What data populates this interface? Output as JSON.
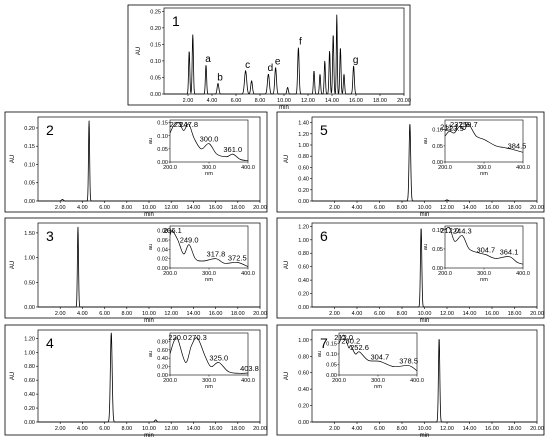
{
  "chart_data": [
    {
      "id": "1",
      "type": "line",
      "panel_label": "1",
      "ylabel": "AU",
      "xlabel": "min",
      "xlim": [
        0,
        20
      ],
      "ylim": [
        0,
        0.26
      ],
      "x_ticks": [
        "2.00",
        "4.00",
        "6.00",
        "8.00",
        "10.00",
        "12.00",
        "14.00",
        "16.00",
        "18.00",
        "20.00"
      ],
      "y_ticks": [
        "0.00",
        "0.05",
        "0.10",
        "0.15",
        "0.20",
        "0.25"
      ],
      "y_tick_values": [
        0,
        0.05,
        0.1,
        0.15,
        0.2,
        0.25
      ],
      "peaks": [
        {
          "rt": 2.1,
          "h": 0.13,
          "w": 0.05
        },
        {
          "rt": 2.4,
          "h": 0.18,
          "w": 0.05
        },
        {
          "rt": 3.5,
          "h": 0.088,
          "w": 0.05,
          "label": "a"
        },
        {
          "rt": 4.5,
          "h": 0.032,
          "w": 0.07,
          "label": "b"
        },
        {
          "rt": 6.8,
          "h": 0.07,
          "w": 0.09,
          "label": "c"
        },
        {
          "rt": 7.3,
          "h": 0.04,
          "w": 0.07
        },
        {
          "rt": 8.7,
          "h": 0.06,
          "w": 0.08,
          "label": "d"
        },
        {
          "rt": 9.3,
          "h": 0.08,
          "w": 0.07,
          "label": "e"
        },
        {
          "rt": 10.3,
          "h": 0.02,
          "w": 0.06
        },
        {
          "rt": 11.2,
          "h": 0.14,
          "w": 0.06,
          "label": "f"
        },
        {
          "rt": 12.5,
          "h": 0.07,
          "w": 0.05
        },
        {
          "rt": 13.0,
          "h": 0.06,
          "w": 0.05
        },
        {
          "rt": 13.4,
          "h": 0.1,
          "w": 0.05
        },
        {
          "rt": 13.8,
          "h": 0.13,
          "w": 0.05
        },
        {
          "rt": 14.1,
          "h": 0.18,
          "w": 0.05
        },
        {
          "rt": 14.4,
          "h": 0.24,
          "w": 0.04
        },
        {
          "rt": 14.7,
          "h": 0.14,
          "w": 0.05
        },
        {
          "rt": 15.0,
          "h": 0.06,
          "w": 0.05
        },
        {
          "rt": 15.8,
          "h": 0.085,
          "w": 0.06,
          "label": "g"
        }
      ]
    },
    {
      "id": "2",
      "type": "line",
      "panel_label": "2",
      "ylabel": "AU",
      "xlabel": "min",
      "xlim": [
        0,
        20
      ],
      "ylim": [
        0,
        0.23
      ],
      "x_ticks": [
        "2.00",
        "4.00",
        "6.00",
        "8.00",
        "10.00",
        "12.00",
        "14.00",
        "16.00",
        "18.00",
        "20.00"
      ],
      "y_ticks": [
        "0.00",
        "0.05",
        "0.10",
        "0.15",
        "0.20"
      ],
      "y_tick_values": [
        0,
        0.05,
        0.1,
        0.15,
        0.2
      ],
      "peaks": [
        {
          "rt": 4.6,
          "h": 0.22,
          "w": 0.05
        },
        {
          "rt": 2.2,
          "h": 0.004,
          "w": 0.1
        }
      ],
      "inset": {
        "ylabel": "au",
        "xlabel": "nm",
        "xlim": [
          200,
          400
        ],
        "ylim": [
          0,
          0.16
        ],
        "x_ticks": [
          "200.0",
          "300.0",
          "400.0"
        ],
        "y_ticks": [
          "0.00",
          "0.05",
          "0.10",
          "0.15"
        ],
        "y_tick_values": [
          0,
          0.05,
          0.1,
          0.15
        ],
        "wavelength": [
          200,
          210,
          223,
          235,
          247.8,
          262,
          280,
          300,
          320,
          345,
          361,
          380,
          400
        ],
        "absorbance": [
          0.11,
          0.14,
          0.15,
          0.12,
          0.145,
          0.09,
          0.05,
          0.07,
          0.03,
          0.02,
          0.03,
          0.01,
          0.005
        ],
        "peak_labels": [
          "223.1",
          "247.8",
          "300.0",
          "361.0"
        ],
        "peak_label_wl": [
          223,
          247.8,
          300,
          361
        ]
      }
    },
    {
      "id": "5",
      "type": "line",
      "panel_label": "5",
      "ylabel": "AU",
      "xlabel": "min",
      "xlim": [
        0,
        20
      ],
      "ylim": [
        0,
        1.5
      ],
      "x_ticks": [
        "2.00",
        "4.00",
        "6.00",
        "8.00",
        "10.00",
        "12.00",
        "14.00",
        "16.00",
        "18.00",
        "20.00"
      ],
      "y_ticks": [
        "0.00",
        "0.20",
        "0.40",
        "0.60",
        "0.80",
        "1.00",
        "1.20",
        "1.40"
      ],
      "y_tick_values": [
        0,
        0.2,
        0.4,
        0.6,
        0.8,
        1.0,
        1.2,
        1.4
      ],
      "peaks": [
        {
          "rt": 8.7,
          "h": 1.38,
          "w": 0.07
        },
        {
          "rt": 12.0,
          "h": 0.02,
          "w": 0.1
        }
      ],
      "inset": {
        "ylabel": "au",
        "xlabel": "nm",
        "xlim": [
          200,
          400
        ],
        "ylim": [
          0,
          0.13
        ],
        "x_ticks": [
          "200.0",
          "300.0",
          "400.0"
        ],
        "y_ticks": [
          "0.00",
          "0.05",
          "0.10"
        ],
        "y_tick_values": [
          0,
          0.05,
          0.1
        ],
        "wavelength": [
          200,
          211,
          224,
          237,
          250,
          260,
          280,
          300,
          330,
          350,
          370,
          385,
          400
        ],
        "absorbance": [
          0.08,
          0.095,
          0.09,
          0.11,
          0.1,
          0.118,
          0.08,
          0.07,
          0.05,
          0.045,
          0.04,
          0.035,
          0.03
        ],
        "peak_labels": [
          "211.1",
          "223.9",
          "237.0",
          "259.7",
          "384.5"
        ],
        "peak_label_wl": [
          211,
          224,
          237,
          259.7,
          384.5
        ]
      }
    },
    {
      "id": "3",
      "type": "line",
      "panel_label": "3",
      "ylabel": "AU",
      "xlabel": "min",
      "xlim": [
        0,
        20
      ],
      "ylim": [
        0,
        1.7
      ],
      "x_ticks": [
        "2.00",
        "4.00",
        "6.00",
        "8.00",
        "10.00",
        "12.00",
        "14.00",
        "16.00",
        "18.00",
        "20.00"
      ],
      "y_ticks": [
        "0.00",
        "0.50",
        "1.00",
        "1.50"
      ],
      "y_tick_values": [
        0,
        0.5,
        1.0,
        1.5
      ],
      "peaks": [
        {
          "rt": 3.6,
          "h": 1.62,
          "w": 0.05
        }
      ],
      "inset": {
        "ylabel": "au",
        "xlabel": "nm",
        "xlim": [
          200,
          400
        ],
        "ylim": [
          0,
          0.09
        ],
        "x_ticks": [
          "200.0",
          "300.0",
          "400.0"
        ],
        "y_ticks": [
          "0.00",
          "0.02",
          "0.04",
          "0.06",
          "0.08"
        ],
        "y_tick_values": [
          0,
          0.02,
          0.04,
          0.06,
          0.08
        ],
        "wavelength": [
          200,
          206.1,
          220,
          235,
          249,
          265,
          285,
          317.8,
          340,
          372.5,
          400
        ],
        "absorbance": [
          0.07,
          0.08,
          0.06,
          0.03,
          0.05,
          0.02,
          0.015,
          0.02,
          0.01,
          0.012,
          0.003
        ],
        "peak_labels": [
          "206.1",
          "249.0",
          "317.8",
          "372.5"
        ],
        "peak_label_wl": [
          206.1,
          249,
          317.8,
          372.5
        ]
      }
    },
    {
      "id": "6",
      "type": "line",
      "panel_label": "6",
      "ylabel": "AU",
      "xlabel": "min",
      "xlim": [
        0,
        20
      ],
      "ylim": [
        0,
        1.25
      ],
      "x_ticks": [
        "2.00",
        "4.00",
        "6.00",
        "8.00",
        "10.00",
        "12.00",
        "14.00",
        "16.00",
        "18.00",
        "20.00"
      ],
      "y_ticks": [
        "0.00",
        "0.20",
        "0.40",
        "0.60",
        "0.80",
        "1.00",
        "1.20"
      ],
      "y_tick_values": [
        0,
        0.2,
        0.4,
        0.6,
        0.8,
        1.0,
        1.2
      ],
      "peaks": [
        {
          "rt": 9.7,
          "h": 1.18,
          "w": 0.06
        }
      ],
      "inset": {
        "ylabel": "au",
        "xlabel": "nm",
        "xlim": [
          200,
          400
        ],
        "ylim": [
          0,
          0.11
        ],
        "x_ticks": [
          "200.0",
          "300.0",
          "400.0"
        ],
        "y_ticks": [
          "0.00",
          "0.05",
          "0.10"
        ],
        "y_tick_values": [
          0,
          0.05,
          0.1
        ],
        "wavelength": [
          200,
          212,
          225,
          244.3,
          262,
          285,
          304.7,
          330,
          364.1,
          385,
          400
        ],
        "absorbance": [
          0.1,
          0.105,
          0.07,
          0.085,
          0.05,
          0.04,
          0.035,
          0.025,
          0.03,
          0.015,
          0.01
        ],
        "peak_labels": [
          "212.0",
          "244.3",
          "304.7",
          "364.1"
        ],
        "peak_label_wl": [
          212,
          244.3,
          304.7,
          364.1
        ]
      }
    },
    {
      "id": "4",
      "type": "line",
      "panel_label": "4",
      "ylabel": "AU",
      "xlabel": "min",
      "xlim": [
        0,
        20
      ],
      "ylim": [
        0,
        1.32
      ],
      "x_ticks": [
        "2.00",
        "4.00",
        "6.00",
        "8.00",
        "10.00",
        "12.00",
        "14.00",
        "16.00",
        "18.00",
        "20.00"
      ],
      "y_ticks": [
        "0.00",
        "0.20",
        "0.40",
        "0.60",
        "0.80",
        "1.00",
        "1.20"
      ],
      "y_tick_values": [
        0,
        0.2,
        0.4,
        0.6,
        0.8,
        1.0,
        1.2
      ],
      "peaks": [
        {
          "rt": 6.6,
          "h": 1.28,
          "w": 0.08
        },
        {
          "rt": 10.6,
          "h": 0.03,
          "w": 0.08
        }
      ],
      "inset": {
        "ylabel": "au",
        "xlabel": "nm",
        "xlim": [
          200,
          400
        ],
        "ylim": [
          0,
          1.0
        ],
        "x_ticks": [
          "200.0",
          "300.0",
          "400.0"
        ],
        "y_ticks": [
          "0.00",
          "0.20",
          "0.40",
          "0.60",
          "0.80"
        ],
        "y_tick_values": [
          0,
          0.2,
          0.4,
          0.6,
          0.8
        ],
        "wavelength": [
          200,
          210,
          220,
          240,
          255,
          270.3,
          290,
          305,
          325,
          350,
          380,
          403.8
        ],
        "absorbance": [
          0.5,
          0.8,
          0.85,
          0.3,
          0.7,
          0.88,
          0.45,
          0.2,
          0.3,
          0.08,
          0.04,
          0.05
        ],
        "peak_labels": [
          "220.0",
          "270.3",
          "325.0",
          "403.8"
        ],
        "peak_label_wl": [
          220,
          270.3,
          325,
          403.8
        ]
      }
    },
    {
      "id": "7",
      "type": "line",
      "panel_label": "7",
      "ylabel": "AU",
      "xlabel": "min",
      "xlim": [
        0,
        20
      ],
      "ylim": [
        0,
        1.12
      ],
      "x_ticks": [
        "2.00",
        "4.00",
        "6.00",
        "8.00",
        "10.00",
        "12.00",
        "14.00",
        "16.00",
        "18.00",
        "20.00"
      ],
      "y_ticks": [
        "0.00",
        "0.20",
        "0.40",
        "0.60",
        "0.80",
        "1.00"
      ],
      "y_tick_values": [
        0,
        0.2,
        0.4,
        0.6,
        0.8,
        1.0
      ],
      "peaks": [
        {
          "rt": 11.3,
          "h": 1.02,
          "w": 0.06
        }
      ],
      "inset": {
        "ylabel": "au",
        "xlabel": "nm",
        "xlim": [
          200,
          400
        ],
        "ylim": [
          0,
          0.2
        ],
        "x_ticks": [
          "200.0",
          "300.0",
          "400.0"
        ],
        "y_ticks": [
          "0.00",
          "0.05",
          "0.10",
          "0.15"
        ],
        "y_tick_values": [
          0,
          0.05,
          0.1,
          0.15
        ],
        "wavelength": [
          200,
          212,
          225,
          230.2,
          242,
          252.6,
          275,
          304.7,
          340,
          378.5,
          400
        ],
        "absorbance": [
          0.15,
          0.19,
          0.13,
          0.14,
          0.1,
          0.11,
          0.07,
          0.065,
          0.04,
          0.045,
          0.02
        ],
        "peak_labels": [
          "212.0",
          "230.2",
          "252.6",
          "304.7",
          "378.5"
        ],
        "peak_label_wl": [
          212,
          230.2,
          252.6,
          304.7,
          378.5
        ]
      }
    }
  ]
}
